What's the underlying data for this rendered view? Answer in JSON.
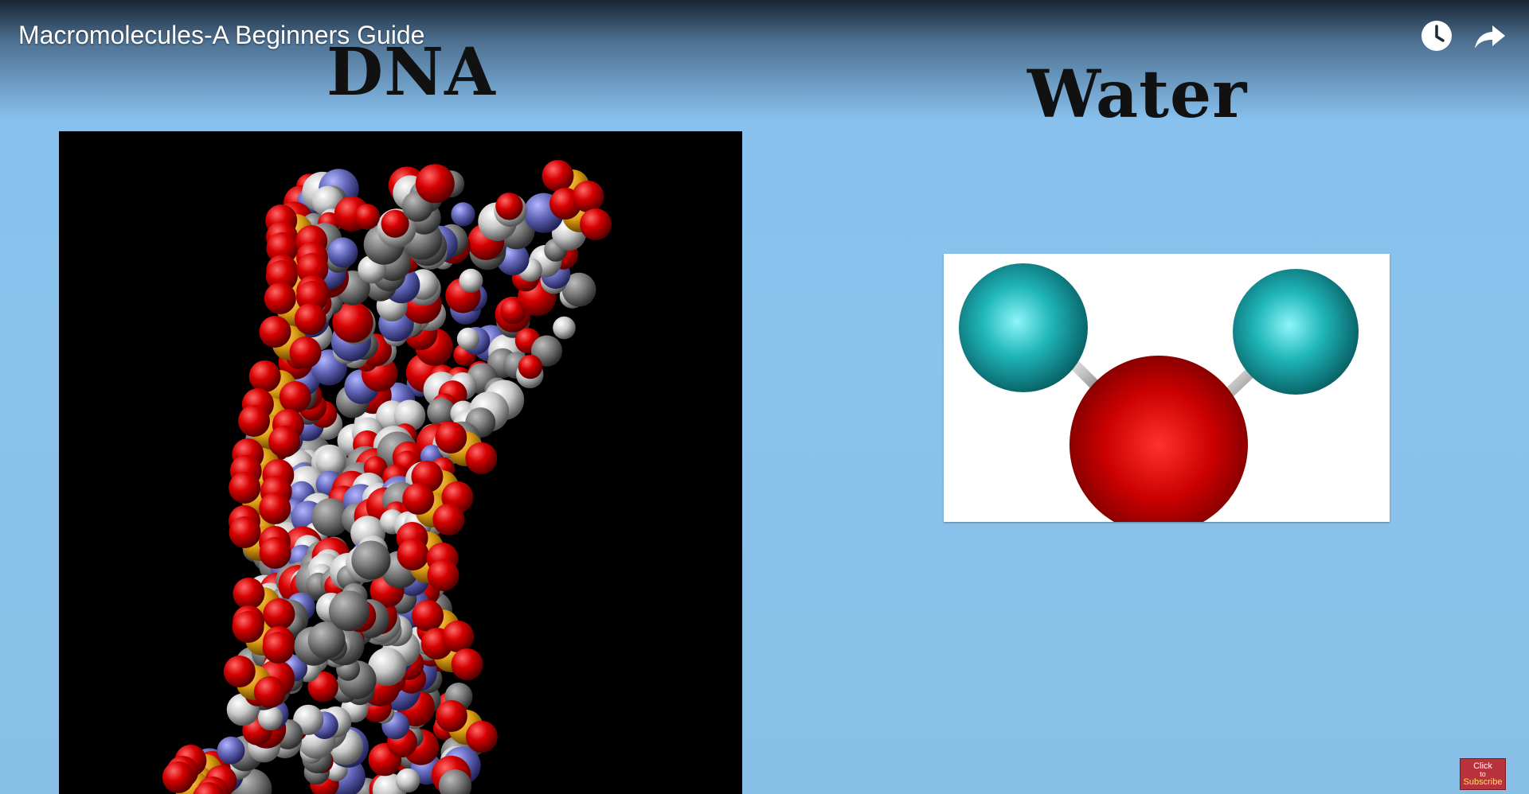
{
  "player": {
    "title": "Macromolecules-A Beginners Guide",
    "icons": {
      "watch_later": "clock-icon",
      "share": "share-arrow-icon"
    }
  },
  "slide": {
    "left_heading": "DNA",
    "right_heading": "Water",
    "background_color": "#8ac2ec",
    "dna_panel_color": "#000000",
    "water_panel_color": "#ffffff"
  },
  "water_molecule": {
    "oxygen_color": "#d00000",
    "hydrogen_color": "#1bb5b8"
  },
  "subscribe": {
    "line1": "Click",
    "line2": "to",
    "line3": "Subscribe",
    "color": "#b7323a"
  }
}
